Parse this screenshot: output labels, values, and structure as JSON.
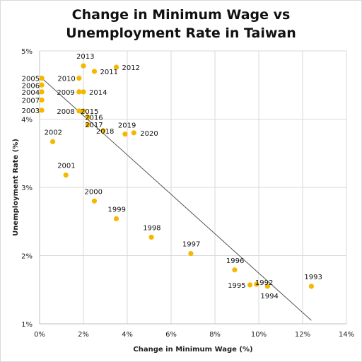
{
  "chart_data": {
    "type": "scatter",
    "title_line1": "Change in Minimum Wage vs",
    "title_line2": "Unemployment Rate in Taiwan",
    "xlabel": "Change in Minimum Wage (%)",
    "ylabel": "Unemployment Rate (%)",
    "xlim": [
      0,
      14
    ],
    "ylim": [
      1,
      5
    ],
    "x_ticks": [
      {
        "v": 0,
        "label": "0%"
      },
      {
        "v": 2,
        "label": "2%"
      },
      {
        "v": 4,
        "label": "4%"
      },
      {
        "v": 6,
        "label": "6%"
      },
      {
        "v": 8,
        "label": "8%"
      },
      {
        "v": 10,
        "label": "10%"
      },
      {
        "v": 12,
        "label": "12%"
      },
      {
        "v": 14,
        "label": "14%"
      }
    ],
    "y_ticks": [
      {
        "v": 1,
        "label": "1%"
      },
      {
        "v": 2,
        "label": "2%"
      },
      {
        "v": 3,
        "label": "3%"
      },
      {
        "v": 4,
        "label": "4%"
      },
      {
        "v": 5,
        "label": "5%"
      }
    ],
    "grid": true,
    "marker_color": "#f5b800",
    "trendline": {
      "x": [
        0,
        12.4
      ],
      "y": [
        4.63,
        1.05
      ]
    },
    "points": [
      {
        "label": "2013",
        "x": 2.0,
        "y": 4.78
      },
      {
        "label": "2012",
        "x": 3.5,
        "y": 4.76
      },
      {
        "label": "2011",
        "x": 2.5,
        "y": 4.7
      },
      {
        "label": "2010",
        "x": 1.8,
        "y": 4.6
      },
      {
        "label": "2005",
        "x": 0.1,
        "y": 4.6
      },
      {
        "label": "2006",
        "x": 0.1,
        "y": 4.5
      },
      {
        "label": "2004",
        "x": 0.1,
        "y": 4.4
      },
      {
        "label": "2009",
        "x": 1.8,
        "y": 4.4
      },
      {
        "label": "2014",
        "x": 2.0,
        "y": 4.4
      },
      {
        "label": "2007",
        "x": 0.1,
        "y": 4.28
      },
      {
        "label": "2003",
        "x": 0.1,
        "y": 4.13
      },
      {
        "label": "2008",
        "x": 1.8,
        "y": 4.12
      },
      {
        "label": "2015",
        "x": 2.0,
        "y": 4.12
      },
      {
        "label": "2016",
        "x": 2.2,
        "y": 4.03
      },
      {
        "label": "2017",
        "x": 2.2,
        "y": 3.92
      },
      {
        "label": "2018",
        "x": 2.9,
        "y": 3.83
      },
      {
        "label": "2019",
        "x": 3.9,
        "y": 3.78
      },
      {
        "label": "2020",
        "x": 4.3,
        "y": 3.8
      },
      {
        "label": "2002",
        "x": 0.6,
        "y": 3.67
      },
      {
        "label": "2001",
        "x": 1.2,
        "y": 3.18
      },
      {
        "label": "2000",
        "x": 2.5,
        "y": 2.8
      },
      {
        "label": "1999",
        "x": 3.5,
        "y": 2.54
      },
      {
        "label": "1998",
        "x": 5.1,
        "y": 2.27
      },
      {
        "label": "1997",
        "x": 6.9,
        "y": 2.03
      },
      {
        "label": "1996",
        "x": 8.9,
        "y": 1.79
      },
      {
        "label": "1995",
        "x": 9.6,
        "y": 1.57
      },
      {
        "label": "1992",
        "x": 9.9,
        "y": 1.58
      },
      {
        "label": "1994",
        "x": 10.4,
        "y": 1.55
      },
      {
        "label": "1993",
        "x": 12.4,
        "y": 1.55
      }
    ]
  }
}
